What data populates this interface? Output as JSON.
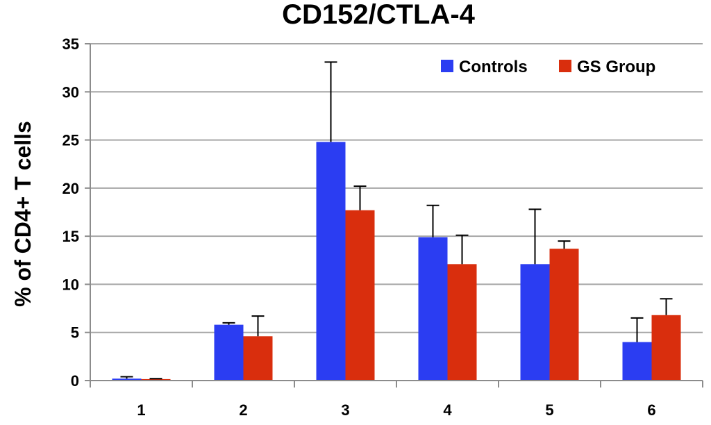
{
  "chart_data": {
    "type": "bar",
    "title": "CD152/CTLA-4",
    "xlabel": "",
    "ylabel": "% of CD4+ T cells",
    "categories": [
      "1",
      "2",
      "3",
      "4",
      "5",
      "6"
    ],
    "ylim": [
      0,
      35
    ],
    "yticks": [
      0,
      5,
      10,
      15,
      20,
      25,
      30,
      35
    ],
    "grid": true,
    "legend_position": "top-right",
    "series": [
      {
        "name": "Controls",
        "color": "#2b3df2",
        "values": [
          0.2,
          5.8,
          24.8,
          14.9,
          12.1,
          4.0
        ],
        "errors": [
          0.2,
          0.2,
          8.3,
          3.3,
          5.7,
          2.5
        ]
      },
      {
        "name": "GS Group",
        "color": "#d92e0d",
        "values": [
          0.15,
          4.6,
          17.7,
          12.1,
          13.7,
          6.8
        ],
        "errors": [
          0.05,
          2.1,
          2.5,
          3.0,
          0.8,
          1.7
        ]
      }
    ]
  }
}
